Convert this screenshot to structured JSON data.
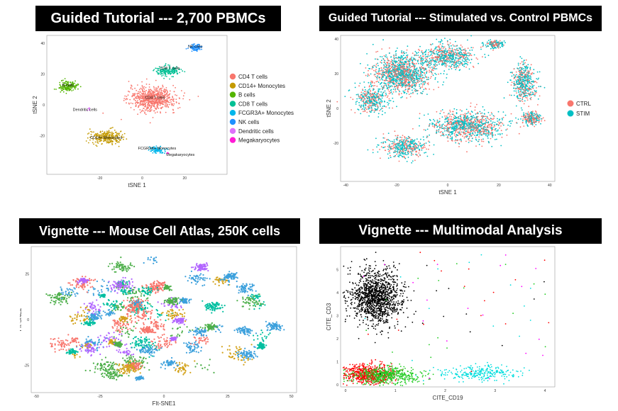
{
  "panels": [
    {
      "id": "p1",
      "banner": "Guided Tutorial --- 2,700 PBMCs",
      "chart_data": {
        "type": "scatter",
        "xlabel": "tSNE 1",
        "ylabel": "tSNE 2",
        "xlim": [
          -45,
          40
        ],
        "ylim": [
          -45,
          45
        ],
        "xticks": [
          "-20",
          "0",
          "20"
        ],
        "yticks": [
          "40",
          "20",
          "0",
          "-20"
        ],
        "legend_position": "right",
        "series": [
          {
            "name": "CD4 T cells",
            "color": "#f8766d",
            "label": "CD4 T cells",
            "cx": 5,
            "cy": 4,
            "sx": 10,
            "sy": 7,
            "n": 700,
            "lx": 6,
            "ly": 4
          },
          {
            "name": "CD14+ Monocytes",
            "color": "#c49a00",
            "label": "CD14+ Monocytes",
            "cx": -17,
            "cy": -21,
            "sx": 7,
            "sy": 4,
            "n": 260,
            "lx": -17,
            "ly": -22
          },
          {
            "name": "B cells",
            "color": "#53b400",
            "label": "B cells",
            "cx": -35,
            "cy": 12,
            "sx": 4,
            "sy": 3,
            "n": 160,
            "lx": -35,
            "ly": 12
          },
          {
            "name": "CD8 T cells",
            "color": "#00c094",
            "label": "CD8 T cells",
            "cx": 12,
            "cy": 22,
            "sx": 5,
            "sy": 3,
            "n": 160,
            "lx": 13,
            "ly": 23
          },
          {
            "name": "FCGR3A+ Monocytes",
            "color": "#00b6eb",
            "label": "FCGR3A+ Monocytes",
            "cx": 7,
            "cy": -29,
            "sx": 3.5,
            "sy": 2,
            "n": 90,
            "lx": 7,
            "ly": -29
          },
          {
            "name": "NK cells",
            "color": "#1e90ff",
            "label": "NK cells",
            "cx": 25,
            "cy": 37,
            "sx": 3,
            "sy": 2,
            "n": 80,
            "lx": 25,
            "ly": 37
          },
          {
            "name": "Dendritic cells",
            "color": "#dd71fa",
            "label": "Dendritic cells",
            "cx": -25,
            "cy": -3,
            "sx": 1,
            "sy": 1,
            "n": 6,
            "lx": -27,
            "ly": -4
          },
          {
            "name": "Megakaryocytes",
            "color": "#ff1bd5",
            "label": "Megakaryocytes",
            "cx": 12,
            "cy": -31,
            "sx": 0.8,
            "sy": 0.8,
            "n": 5,
            "lx": 18,
            "ly": -33
          }
        ]
      }
    },
    {
      "id": "p2",
      "banner": "Guided Tutorial --- Stimulated vs. Control PBMCs",
      "chart_data": {
        "type": "scatter",
        "xlabel": "tSNE 1",
        "ylabel": "tSNE 2",
        "xlim": [
          -42,
          42
        ],
        "ylim": [
          -42,
          42
        ],
        "xticks": [
          "-40",
          "-20",
          "0",
          "20",
          "40"
        ],
        "yticks": [
          "40",
          "20",
          "0",
          "-20"
        ],
        "legend_position": "right",
        "series": [
          {
            "name": "CTRL",
            "color": "#f8766d",
            "label": "",
            "n": 2200
          },
          {
            "name": "STIM",
            "color": "#00bfc4",
            "label": "",
            "n": 2200
          }
        ]
      }
    },
    {
      "id": "p3",
      "banner": "Vignette --- Mouse Cell Atlas, 250K cells",
      "chart_data": {
        "type": "scatter",
        "xlabel": "FIt-SNE1",
        "ylabel": "FIt-SNE2",
        "xlim": [
          -52,
          52
        ],
        "ylim": [
          -40,
          40
        ],
        "xticks": [
          "-50",
          "-25",
          "0",
          "25",
          "50"
        ],
        "yticks": [
          "25",
          "0",
          "-25"
        ],
        "series": [
          {
            "name": "",
            "color": "#f8766d",
            "n": 1500
          },
          {
            "name": "",
            "color": "#d3a21a",
            "n": 1100
          },
          {
            "name": "",
            "color": "#4daf4a",
            "n": 700
          },
          {
            "name": "",
            "color": "#00bfa0",
            "n": 700
          },
          {
            "name": "",
            "color": "#3ca0dc",
            "n": 400
          },
          {
            "name": "",
            "color": "#b266ff",
            "n": 150
          }
        ]
      }
    },
    {
      "id": "p4",
      "banner": "Vignette --- Multimodal Analysis",
      "chart_data": {
        "type": "scatter",
        "xlabel": "CITE_CD19",
        "ylabel": "CITE_CD3",
        "xlim": [
          -0.1,
          4.2
        ],
        "ylim": [
          -0.1,
          6
        ],
        "xticks": [
          "0",
          "1",
          "2",
          "3",
          "4"
        ],
        "yticks": [
          "0",
          "1",
          "2",
          "3",
          "4",
          "5"
        ],
        "series": [
          {
            "name": "",
            "color": "#000000",
            "cx": 0.6,
            "cy": 3.8,
            "sx": 0.25,
            "sy": 0.55,
            "n": 1300
          },
          {
            "name": "",
            "color": "#ff0000",
            "cx": 0.45,
            "cy": 0.45,
            "sx": 0.25,
            "sy": 0.2,
            "n": 600
          },
          {
            "name": "",
            "color": "#22cc22",
            "cx": 0.8,
            "cy": 0.4,
            "sx": 0.35,
            "sy": 0.18,
            "n": 500
          },
          {
            "name": "",
            "color": "#00dddd",
            "cx": 2.7,
            "cy": 0.5,
            "sx": 0.4,
            "sy": 0.15,
            "n": 250
          }
        ]
      }
    }
  ]
}
